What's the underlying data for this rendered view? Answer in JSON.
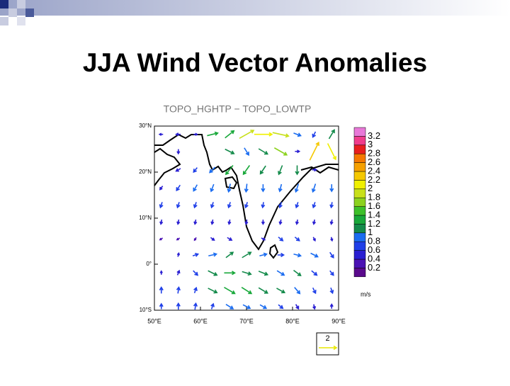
{
  "header": {
    "title": "JJA Wind Vector Anomalies"
  },
  "map": {
    "title": "TOPO_HGHTP − TOPO_LOWTP",
    "xlim": [
      50,
      90
    ],
    "ylim": [
      -10,
      30
    ],
    "xticks": [
      {
        "value": 50,
        "label": "50°E"
      },
      {
        "value": 60,
        "label": "60°E"
      },
      {
        "value": 70,
        "label": "70°E"
      },
      {
        "value": 80,
        "label": "80°E"
      },
      {
        "value": 90,
        "label": "90°E"
      }
    ],
    "yticks": [
      {
        "value": 30,
        "label": "30°N"
      },
      {
        "value": 20,
        "label": "20°N"
      },
      {
        "value": 10,
        "label": "10°N"
      },
      {
        "value": 0,
        "label": "0°"
      },
      {
        "value": -10,
        "label": "10°S"
      }
    ],
    "vectors": {
      "lons": [
        51.5,
        55.2,
        58.9,
        62.6,
        66.3,
        70,
        73.6,
        77.4,
        81,
        84.7,
        88.5
      ],
      "lats": [
        28.2,
        24.5,
        20.5,
        16.6,
        12.9,
        9.2,
        5.5,
        2,
        -1.9,
        -5.7,
        -9.2
      ],
      "u": [
        [
          -0.4,
          -0.5,
          0.4,
          1.2,
          1.0,
          1.6,
          2.0,
          1.8,
          0.8,
          -0.3,
          0.6
        ],
        [
          0,
          0,
          0,
          0,
          1.0,
          0.5,
          1.0,
          1.4,
          0.5,
          1.0,
          0.9
        ],
        [
          0,
          -0.5,
          -0.4,
          -0.6,
          -0.8,
          -0.7,
          -0.6,
          -0.4,
          0,
          0.5,
          0
        ],
        [
          -0.3,
          -0.4,
          -0.4,
          -0.3,
          -0.2,
          -0.1,
          0,
          -0.2,
          -0.3,
          -0.3,
          0
        ],
        [
          -0.2,
          -0.2,
          -0.2,
          -0.2,
          -0.2,
          -0.2,
          -0.1,
          -0.2,
          -0.2,
          -0.2,
          -0.1
        ],
        [
          -0.1,
          -0.1,
          -0.1,
          -0.1,
          -0.1,
          -0.1,
          0,
          -0.1,
          -0.1,
          -0.1,
          -0.1
        ],
        [
          -0.3,
          -0.3,
          -0.2,
          0.4,
          0.5,
          0,
          0.4,
          0.5,
          0.5,
          0.2,
          0.1
        ],
        [
          0,
          0.1,
          0.6,
          0.9,
          0.8,
          1.0,
          0.8,
          0.7,
          0.8,
          0.8,
          0.4
        ],
        [
          0,
          0.2,
          0.5,
          1.0,
          1.2,
          1.0,
          1.0,
          0.8,
          0.8,
          0.6,
          0.4
        ],
        [
          0,
          0.1,
          0.2,
          1.0,
          1.2,
          1.1,
          1.0,
          0.9,
          0.6,
          0.3,
          0.2
        ],
        [
          0,
          0,
          0.1,
          0.2,
          0.8,
          0.8,
          0.7,
          0.5,
          0.3,
          0.1,
          0
        ]
      ],
      "v": [
        [
          0,
          0,
          0,
          0.3,
          0.8,
          0.9,
          0,
          -0.4,
          -0.3,
          -0.6,
          1.0
        ],
        [
          0,
          -0.5,
          0,
          0,
          -0.5,
          -0.8,
          -0.6,
          -0.8,
          0,
          2.0,
          -1.8
        ],
        [
          0,
          -0.3,
          -0.5,
          -0.6,
          -1,
          -1,
          -0.9,
          -1.0,
          -1,
          0,
          0
        ],
        [
          -0.4,
          -0.6,
          -0.7,
          -0.8,
          -0.9,
          -0.9,
          -0.8,
          -0.8,
          -0.9,
          -0.9,
          -0.8
        ],
        [
          -0.6,
          -0.6,
          -0.6,
          -0.6,
          -0.6,
          -0.6,
          -0.6,
          -0.6,
          -0.6,
          -0.6,
          -0.6
        ],
        [
          -0.5,
          -0.5,
          -0.5,
          -0.5,
          -0.5,
          -0.5,
          -0.5,
          -0.5,
          -0.5,
          -0.5,
          -0.5
        ],
        [
          -0.2,
          -0.2,
          -0.3,
          -0.3,
          -0.3,
          0,
          -0.2,
          -0.4,
          -0.4,
          -0.4,
          -0.4
        ],
        [
          0,
          0.4,
          0.2,
          0.2,
          0.6,
          0.6,
          0.2,
          0,
          -0.2,
          -0.4,
          -0.6
        ],
        [
          0.4,
          0.5,
          -0.5,
          -0.5,
          0,
          -0.3,
          -0.4,
          -0.5,
          -0.6,
          -0.5,
          -0.5
        ],
        [
          0.7,
          0.7,
          0.6,
          -0.5,
          -0.7,
          -0.7,
          -0.6,
          -0.5,
          -0.7,
          -0.6,
          -0.6
        ],
        [
          0.6,
          0.7,
          0.7,
          0.6,
          -0.5,
          -0.4,
          -0.4,
          -0.4,
          -0.5,
          -0.5,
          0.5
        ]
      ]
    },
    "colorbar": {
      "levels": [
        0.2,
        0.4,
        0.6,
        0.8,
        1,
        1.2,
        1.4,
        1.6,
        1.8,
        2,
        2.2,
        2.4,
        2.6,
        2.8,
        3,
        3.2
      ],
      "colors": [
        "#5a0a8c",
        "#4b12b4",
        "#2a1fd2",
        "#1f3fe8",
        "#1a6cf0",
        "#138a4a",
        "#18a83a",
        "#3cc02a",
        "#8cd21e",
        "#c8e01a",
        "#f0f000",
        "#f5c800",
        "#f5a000",
        "#f57800",
        "#e81e1e",
        "#f03c8c",
        "#e878d8"
      ],
      "units": "m/s"
    },
    "reference": {
      "value": 2,
      "color": "#e8e800"
    }
  }
}
